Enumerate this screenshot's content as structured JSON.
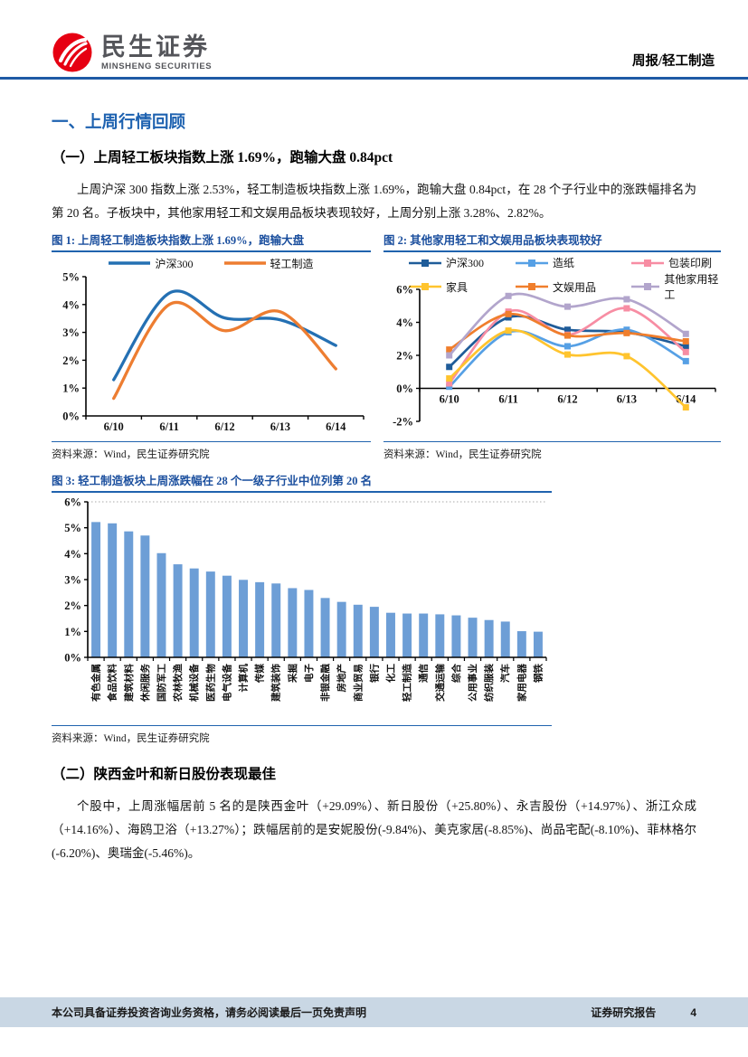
{
  "header": {
    "brand_cn": "民生证券",
    "brand_en": "MINSHENG SECURITIES",
    "doc_type": "周报/轻工制造"
  },
  "section": {
    "title": "一、上周行情回顾",
    "sub1_title": "（一）上周轻工板块指数上涨 1.69%，跑输大盘 0.84pct",
    "sub1_paragraph": "上周沪深 300 指数上涨 2.53%，轻工制造板块指数上涨 1.69%，跑输大盘 0.84pct，在 28 个子行业中的涨跌幅排名为第 20 名。子板块中，其他家用轻工和文娱用品板块表现较好，上周分别上涨 3.28%、2.82%。",
    "sub2_title": "（二）陕西金叶和新日股份表现最佳",
    "sub2_paragraph": "个股中，上周涨幅居前 5 名的是陕西金叶（+29.09%）、新日股份（+25.80%）、永吉股份（+14.97%）、浙江众成（+14.16%）、海鸥卫浴（+13.27%）；跌幅居前的是安妮股份(-9.84%)、美克家居(-8.85%)、尚品宅配(-8.10%)、菲林格尔(-6.20%)、奥瑞金(-5.46%)。"
  },
  "colors": {
    "accent_blue": "#2063AE",
    "brand_red": "#E60012",
    "footer_bg": "#C9D7E4"
  },
  "chart_data": [
    {
      "type": "line",
      "title": "图 1: 上周轻工制造板块指数上涨 1.69%，跑输大盘",
      "source": "资料来源：Wind，民生证券研究院",
      "x": [
        "6/10",
        "6/11",
        "6/12",
        "6/13",
        "6/14"
      ],
      "series": [
        {
          "name": "沪深300",
          "color": "#2470B3",
          "values": [
            1.3,
            4.41,
            3.52,
            3.45,
            2.53
          ]
        },
        {
          "name": "轻工制造",
          "color": "#ED7D31",
          "values": [
            0.63,
            4.0,
            3.06,
            3.74,
            1.69
          ]
        }
      ],
      "ylim": [
        0,
        5
      ],
      "yticks": [
        0,
        1,
        2,
        3,
        4,
        5
      ],
      "ytick_suffix": "%",
      "legend_position": "top-center",
      "grid": false
    },
    {
      "type": "line",
      "title": "图 2: 其他家用轻工和文娱用品板块表现较好",
      "source": "资料来源：Wind，民生证券研究院",
      "x": [
        "6/10",
        "6/11",
        "6/12",
        "6/13",
        "6/14"
      ],
      "series": [
        {
          "name": "沪深300",
          "color": "#1F5C99",
          "values": [
            1.3,
            4.3,
            3.55,
            3.4,
            2.55
          ]
        },
        {
          "name": "造纸",
          "color": "#56A0E5",
          "values": [
            0.1,
            3.4,
            2.55,
            3.55,
            1.65
          ]
        },
        {
          "name": "包装印刷",
          "color": "#F78DA3",
          "values": [
            0.3,
            4.65,
            3.25,
            4.85,
            2.2
          ]
        },
        {
          "name": "家具",
          "color": "#FFC42E",
          "values": [
            0.6,
            3.5,
            2.05,
            1.95,
            -1.15
          ]
        },
        {
          "name": "文娱用品",
          "color": "#F07E2C",
          "values": [
            2.35,
            4.5,
            3.2,
            3.35,
            2.85
          ]
        },
        {
          "name": "其他家用轻工",
          "color": "#B2A5CC",
          "values": [
            2.0,
            5.6,
            4.95,
            5.4,
            3.3
          ]
        }
      ],
      "ylim": [
        -2,
        6
      ],
      "yticks": [
        -2,
        0,
        2,
        4,
        6
      ],
      "ytick_suffix": "%",
      "markers": "square",
      "legend_position": "top-3col",
      "grid": false
    },
    {
      "type": "bar",
      "title": "图 3: 轻工制造板块上周涨跌幅在 28 个一级子行业中位列第 20 名",
      "source": "资料来源：Wind，民生证券研究院",
      "categories": [
        "有色金属",
        "食品饮料",
        "建筑材料",
        "休闲服务",
        "国防军工",
        "农林牧渔",
        "机械设备",
        "医药生物",
        "电气设备",
        "计算机",
        "传媒",
        "建筑装饰",
        "采掘",
        "电子",
        "非银金融",
        "房地产",
        "商业贸易",
        "银行",
        "化工",
        "轻工制造",
        "通信",
        "交通运输",
        "综合",
        "公用事业",
        "纺织服装",
        "汽车",
        "家用电器",
        "钢铁"
      ],
      "values": [
        5.22,
        5.17,
        4.86,
        4.7,
        4.02,
        3.59,
        3.43,
        3.31,
        3.15,
        2.99,
        2.9,
        2.85,
        2.67,
        2.6,
        2.29,
        2.14,
        2.03,
        1.95,
        1.72,
        1.69,
        1.69,
        1.66,
        1.62,
        1.53,
        1.44,
        1.38,
        1.01,
        0.99
      ],
      "bar_color": "#6D9ED6",
      "ylim": [
        0,
        6
      ],
      "yticks": [
        0,
        1,
        2,
        3,
        4,
        5,
        6
      ],
      "ytick_suffix": "%",
      "grid": false
    }
  ],
  "footer": {
    "disclaimer": "本公司具备证券投资咨询业务资格，请务必阅读最后一页免责声明",
    "doc_label": "证券研究报告",
    "page_number": "4"
  }
}
